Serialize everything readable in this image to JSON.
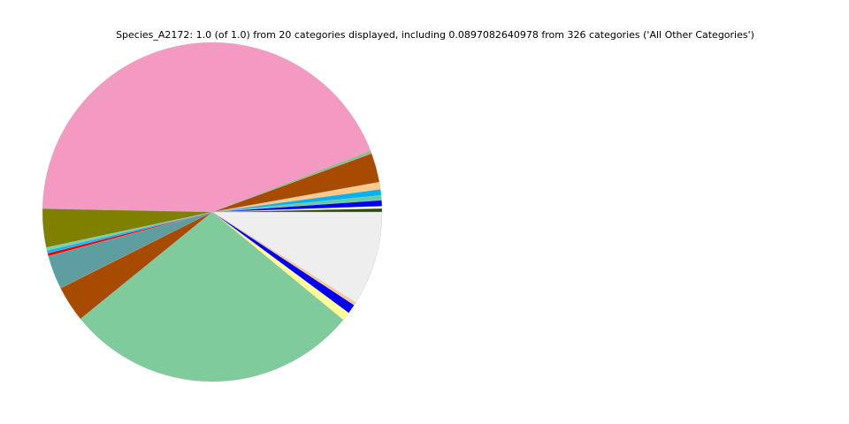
{
  "chart_data": {
    "type": "pie",
    "title": "Species_A2172: 1.0 (of 1.0) from 20 categories displayed, including 0.0897082640978 from 326 categories ('All Other Categories')",
    "values": [
      0.0033,
      0.0022,
      0.0056,
      0.0047,
      0.0056,
      0.0069,
      0.0278,
      0.0028,
      0.438,
      0.0367,
      0.0028,
      0.0028,
      0.0028,
      0.0322,
      0.0344,
      0.2817,
      0.0083,
      0.0089,
      0.0028,
      0.0897082640978
    ],
    "colors": [
      "#264d00",
      "#ffffff",
      "#0000ee",
      "#66cdaa",
      "#00b2ee",
      "#ffc88c",
      "#a64b00",
      "#8fbc8f",
      "#f49ac2",
      "#808000",
      "#7fd3a0",
      "#00bfff",
      "#ee0000",
      "#5f9ea0",
      "#a64b00",
      "#80cb9b",
      "#ffff99",
      "#0000ee",
      "#ffc88c",
      "#eeeeee"
    ],
    "start_angle": 0,
    "counterclockwise": true
  }
}
